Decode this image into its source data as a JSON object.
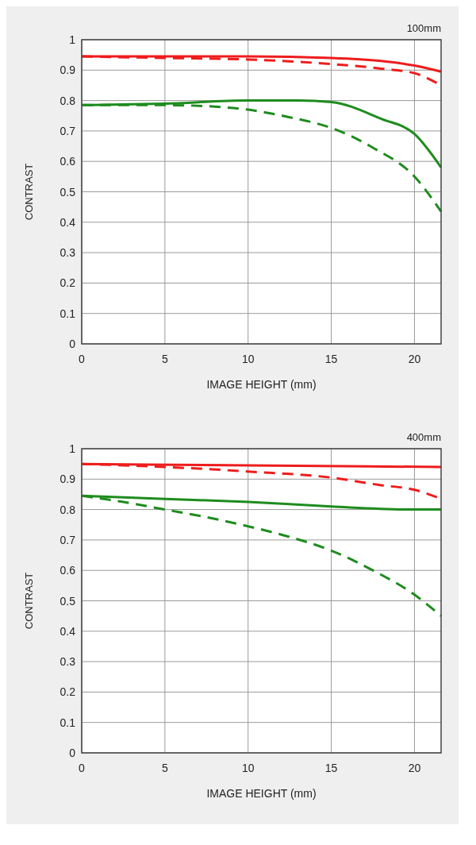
{
  "chart_data": [
    {
      "type": "line",
      "title": "100mm",
      "xlabel": "IMAGE HEIGHT (mm)",
      "ylabel": "CONTRAST",
      "xlim": [
        0,
        21.6
      ],
      "ylim": [
        0,
        1
      ],
      "xticks": [
        0,
        5,
        10,
        15,
        20
      ],
      "yticks": [
        0,
        0.1,
        0.2,
        0.3,
        0.4,
        0.5,
        0.6,
        0.7,
        0.8,
        0.9,
        1
      ],
      "grid": true,
      "marker": "none",
      "series": [
        {
          "color": "#ee1c1c",
          "line_style": "solid",
          "x": [
            0,
            5,
            10,
            15,
            18,
            20,
            21.6
          ],
          "values": [
            0.945,
            0.945,
            0.945,
            0.94,
            0.93,
            0.915,
            0.895
          ]
        },
        {
          "color": "#ee1c1c",
          "line_style": "dashed",
          "x": [
            0,
            5,
            10,
            15,
            18,
            20,
            21.6
          ],
          "values": [
            0.945,
            0.94,
            0.935,
            0.92,
            0.905,
            0.89,
            0.85
          ]
        },
        {
          "color": "#1e8c1e",
          "line_style": "solid",
          "x": [
            0,
            5,
            10,
            13,
            15,
            18,
            20,
            21.6
          ],
          "values": [
            0.785,
            0.79,
            0.8,
            0.8,
            0.795,
            0.74,
            0.69,
            0.58
          ]
        },
        {
          "color": "#1e8c1e",
          "line_style": "dashed",
          "x": [
            0,
            5,
            8,
            10,
            12.5,
            15,
            17.5,
            20,
            21.6
          ],
          "values": [
            0.785,
            0.785,
            0.78,
            0.77,
            0.745,
            0.71,
            0.645,
            0.55,
            0.435
          ]
        }
      ]
    },
    {
      "type": "line",
      "title": "400mm",
      "xlabel": "IMAGE HEIGHT (mm)",
      "ylabel": "CONTRAST",
      "xlim": [
        0,
        21.6
      ],
      "ylim": [
        0,
        1
      ],
      "xticks": [
        0,
        5,
        10,
        15,
        20
      ],
      "yticks": [
        0,
        0.1,
        0.2,
        0.3,
        0.4,
        0.5,
        0.6,
        0.7,
        0.8,
        0.9,
        1
      ],
      "grid": true,
      "marker": "none",
      "series": [
        {
          "color": "#ee1c1c",
          "line_style": "solid",
          "x": [
            0,
            10,
            21.6
          ],
          "values": [
            0.95,
            0.945,
            0.94
          ]
        },
        {
          "color": "#ee1c1c",
          "line_style": "dashed",
          "x": [
            0,
            5,
            10,
            15,
            18,
            20,
            21.6
          ],
          "values": [
            0.95,
            0.94,
            0.925,
            0.905,
            0.88,
            0.865,
            0.835
          ]
        },
        {
          "color": "#1e8c1e",
          "line_style": "solid",
          "x": [
            0,
            5,
            10,
            15,
            20,
            21.6
          ],
          "values": [
            0.845,
            0.835,
            0.825,
            0.81,
            0.8,
            0.8
          ]
        },
        {
          "color": "#1e8c1e",
          "line_style": "dashed",
          "x": [
            0,
            2.5,
            5,
            7.5,
            10,
            12.5,
            15,
            17.5,
            20,
            21.6
          ],
          "values": [
            0.845,
            0.825,
            0.8,
            0.775,
            0.745,
            0.71,
            0.665,
            0.6,
            0.52,
            0.45
          ]
        }
      ]
    }
  ]
}
